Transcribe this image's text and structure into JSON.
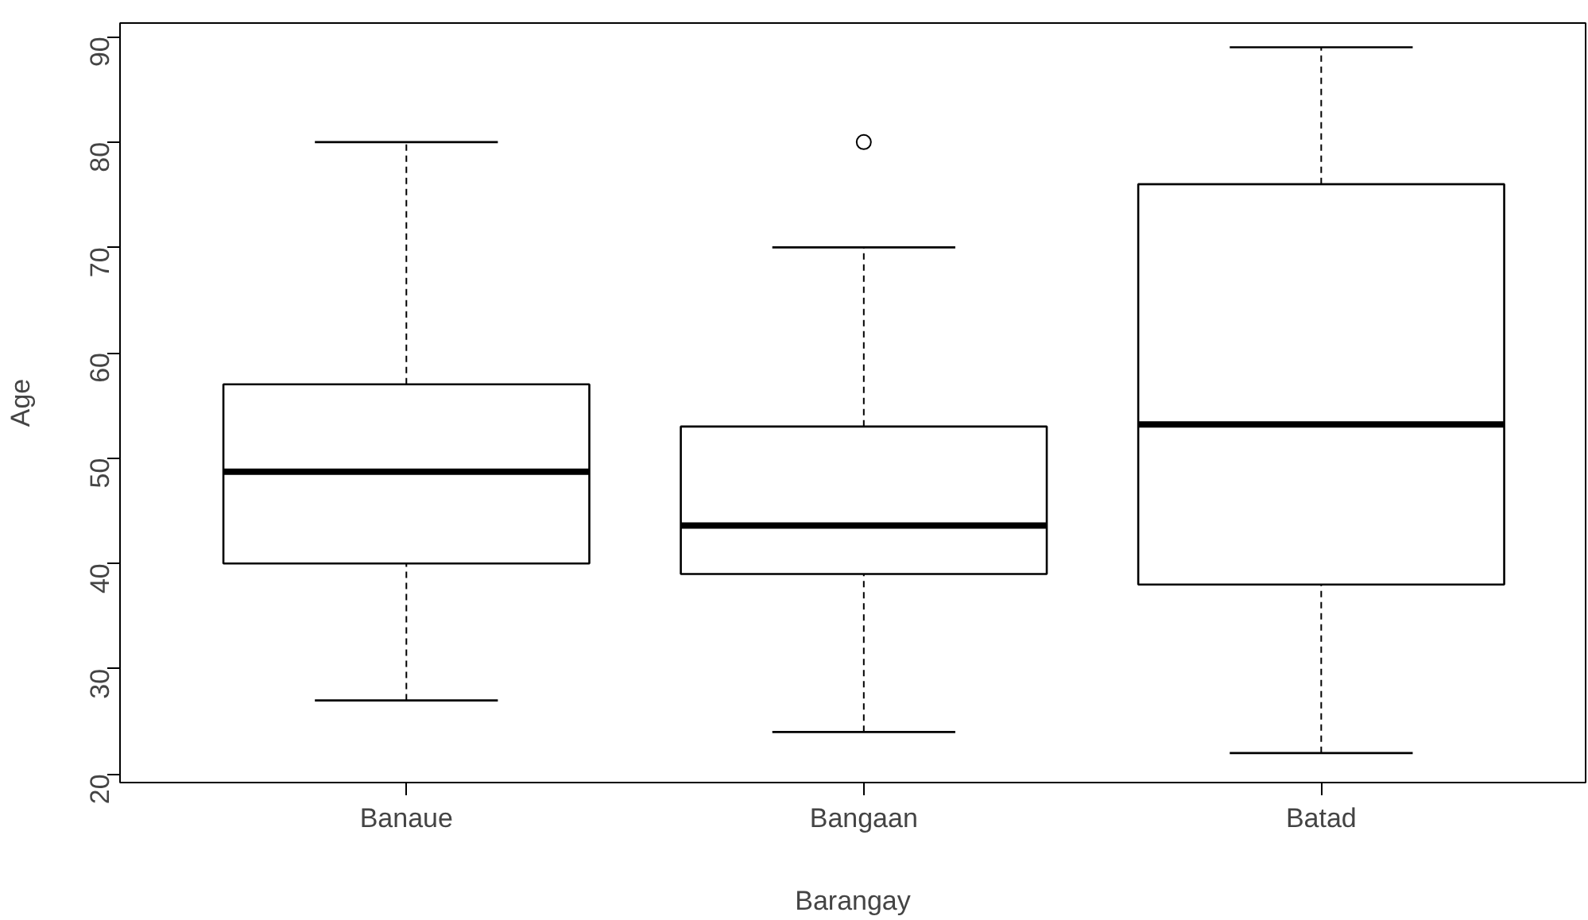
{
  "chart_data": {
    "type": "box",
    "xlabel": "Barangay",
    "ylabel": "Age",
    "categories": [
      "Banaue",
      "Bangaan",
      "Batad"
    ],
    "boxes": [
      {
        "low": 27,
        "q1": 40,
        "median": 48.7,
        "q3": 57,
        "high": 80
      },
      {
        "low": 24,
        "q1": 39,
        "median": 43.6,
        "q3": 53,
        "high": 70,
        "outliers": [
          80
        ]
      },
      {
        "low": 22,
        "q1": 38,
        "median": 53.2,
        "q3": 76,
        "high": 89
      }
    ],
    "ylim": [
      19.2,
      91.3
    ],
    "yticks": [
      20,
      30,
      40,
      50,
      60,
      70,
      80,
      90
    ],
    "grid": false
  }
}
